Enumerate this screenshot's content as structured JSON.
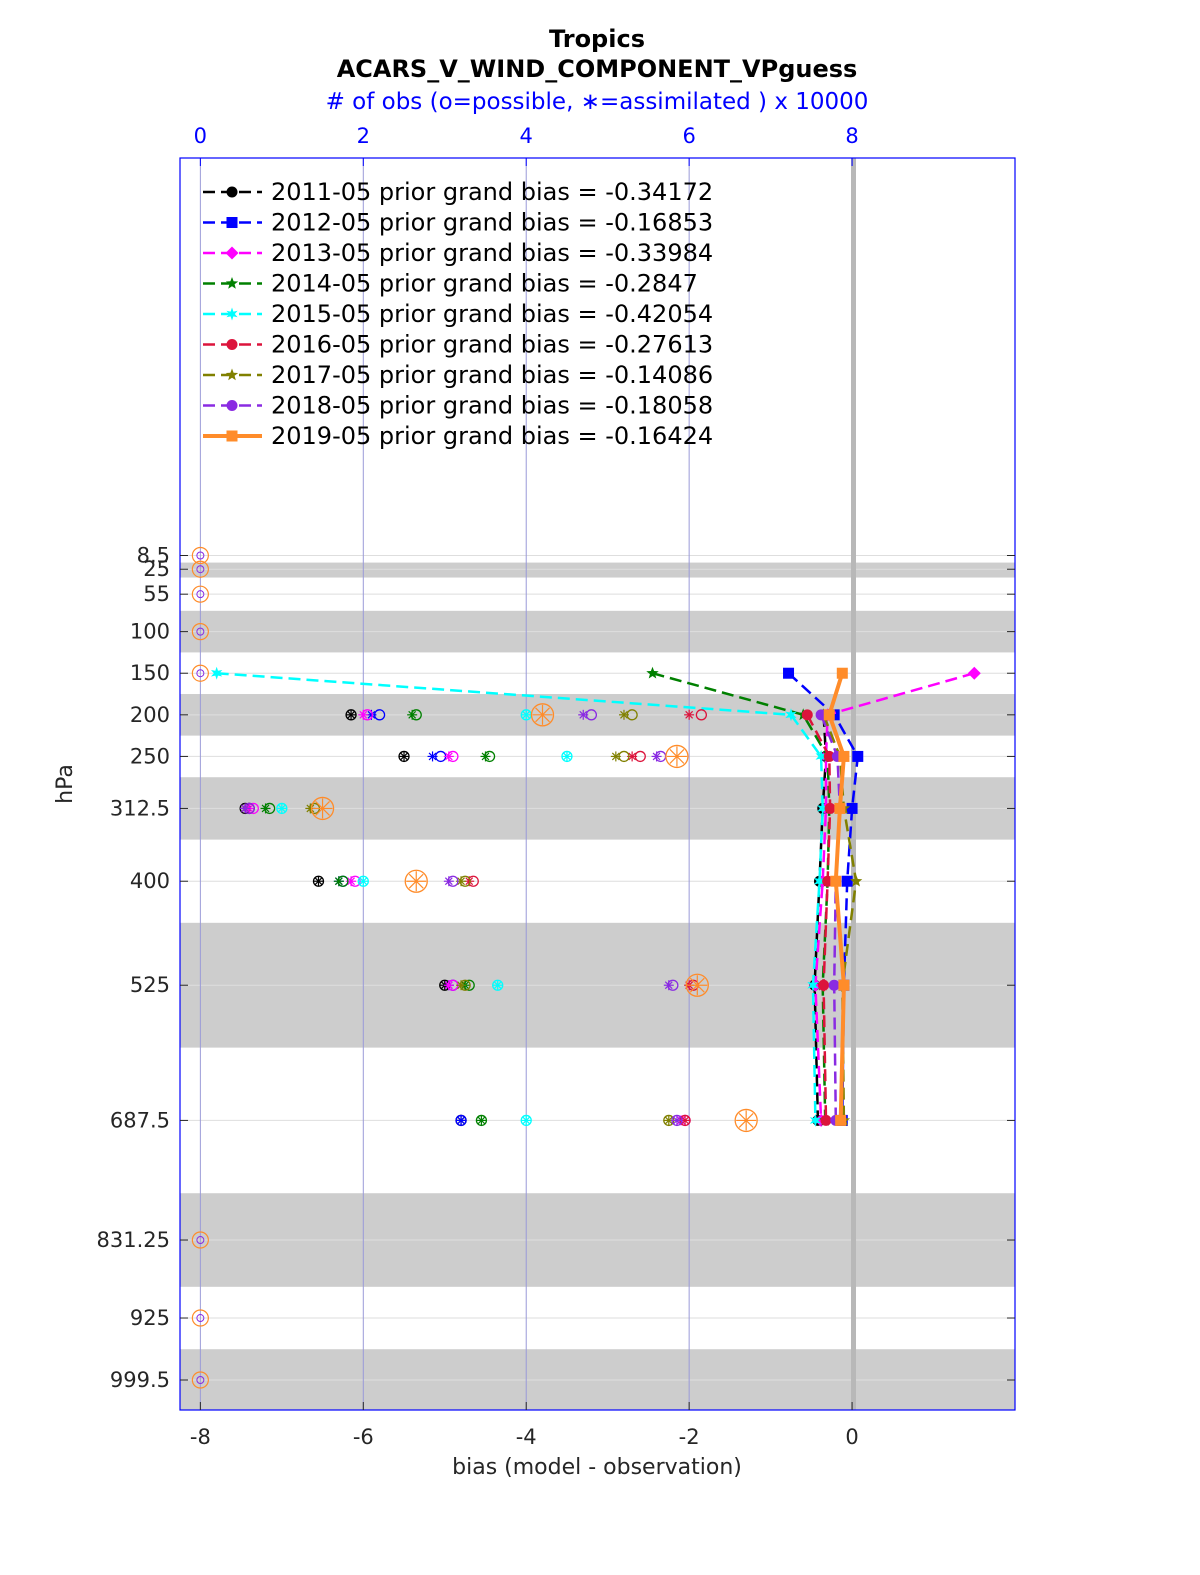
{
  "chart_data": {
    "type": "line",
    "title": "Tropics",
    "subtitle": "ACARS_V_WIND_COMPONENT_VPguess",
    "top_axis_label": "# of obs (o=possible, ∗=assimilated ) x 10000",
    "xlabel": "bias (model - observation)",
    "ylabel": "hPa",
    "xlim": [
      -8.25,
      2.0
    ],
    "top_xlim": [
      -0.25,
      10.0
    ],
    "x_ticks": [
      "-8",
      "-6",
      "-4",
      "-2",
      "0"
    ],
    "x_tick_values": [
      -8,
      -6,
      -4,
      -2,
      0
    ],
    "top_ticks": [
      "0",
      "2",
      "4",
      "6",
      "8"
    ],
    "top_tick_values": [
      0,
      2,
      4,
      6,
      8
    ],
    "y_tick_labels": [
      "8.5",
      "25",
      "55",
      "100",
      "150",
      "200",
      "250",
      "312.5",
      "400",
      "525",
      "687.5",
      "831.25",
      "925",
      "999.5"
    ],
    "levels": [
      8.5,
      25,
      55,
      100,
      150,
      200,
      250,
      312.5,
      400,
      525,
      687.5,
      831.25,
      925,
      999.5
    ],
    "layer_bands": [
      [
        17,
        35
      ],
      [
        75,
        125
      ],
      [
        175,
        225
      ],
      [
        275,
        350
      ],
      [
        450,
        600
      ],
      [
        775,
        887.5
      ],
      [
        962.5,
        1037
      ]
    ],
    "series": [
      {
        "name": "2011-05 prior grand bias = -0.34172",
        "color": "#000000",
        "marker": "circle",
        "dash": true,
        "levels": [
          200,
          250,
          312.5,
          400,
          525,
          687.5
        ],
        "bias": [
          -0.35,
          -0.32,
          -0.36,
          -0.4,
          -0.46,
          -0.42
        ],
        "poss": [
          1.85,
          2.5,
          0.55,
          1.45,
          3.0,
          3.2
        ],
        "used": [
          1.85,
          2.5,
          0.55,
          1.45,
          3.0,
          3.2
        ]
      },
      {
        "name": "2012-05 prior grand bias = -0.16853",
        "color": "#0000ff",
        "marker": "square",
        "dash": true,
        "levels": [
          150,
          200,
          250,
          312.5,
          400,
          525,
          687.5
        ],
        "bias": [
          -0.78,
          -0.22,
          0.07,
          0.0,
          -0.06,
          -0.1,
          -0.12
        ],
        "poss": [
          null,
          2.2,
          2.95,
          0.6,
          1.75,
          3.1,
          3.2
        ],
        "used": [
          null,
          2.1,
          2.85,
          0.55,
          1.7,
          3.05,
          3.2
        ]
      },
      {
        "name": "2013-05 prior grand bias = -0.33984",
        "color": "#ff00ff",
        "marker": "diamond",
        "dash": true,
        "levels": [
          150,
          200,
          250,
          312.5,
          400,
          525,
          687.5
        ],
        "bias": [
          1.5,
          -0.3,
          -0.32,
          -0.32,
          -0.36,
          -0.45,
          -0.38
        ],
        "poss": [
          null,
          2.05,
          3.1,
          0.65,
          1.9,
          3.1,
          5.95
        ],
        "used": [
          null,
          2.0,
          3.05,
          0.6,
          1.85,
          3.05,
          5.9
        ]
      },
      {
        "name": "2014-05 prior grand bias = -0.2847",
        "color": "#008000",
        "marker": "star",
        "dash": true,
        "levels": [
          150,
          200,
          250,
          312.5,
          400,
          525,
          687.5
        ],
        "bias": [
          -2.45,
          -0.6,
          -0.3,
          -0.28,
          -0.3,
          -0.36,
          -0.33
        ],
        "poss": [
          null,
          2.65,
          3.55,
          0.85,
          1.75,
          3.3,
          3.45
        ],
        "used": [
          null,
          2.6,
          3.5,
          0.8,
          1.7,
          3.25,
          3.45
        ]
      },
      {
        "name": "2015-05 prior grand bias = -0.42054",
        "color": "#00ffff",
        "marker": "hexagram",
        "dash": true,
        "levels": [
          150,
          200,
          250,
          312.5,
          400,
          525,
          687.5
        ],
        "bias": [
          -7.8,
          -0.75,
          -0.38,
          -0.36,
          -0.4,
          -0.48,
          -0.45
        ],
        "poss": [
          null,
          4.0,
          4.5,
          1.0,
          2.0,
          3.65,
          4.0
        ],
        "used": [
          null,
          4.0,
          4.5,
          1.0,
          2.0,
          3.65,
          4.0
        ]
      },
      {
        "name": "2016-05 prior grand bias = -0.27613",
        "color": "#dc143c",
        "marker": "circle",
        "dash": true,
        "levels": [
          200,
          250,
          312.5,
          400,
          525,
          687.5
        ],
        "bias": [
          -0.55,
          -0.28,
          -0.27,
          -0.3,
          -0.35,
          -0.32
        ],
        "poss": [
          6.15,
          5.4,
          0.6,
          3.35,
          6.05,
          5.95
        ],
        "used": [
          6.0,
          5.3,
          0.55,
          3.3,
          6.0,
          5.95
        ]
      },
      {
        "name": "2017-05 prior grand bias = -0.14086",
        "color": "#808000",
        "marker": "star",
        "dash": true,
        "levels": [
          200,
          250,
          312.5,
          400,
          525,
          687.5
        ],
        "bias": [
          -0.35,
          -0.15,
          -0.1,
          0.05,
          -0.12,
          -0.1
        ],
        "poss": [
          5.3,
          5.2,
          1.4,
          3.25,
          3.25,
          5.75
        ],
        "used": [
          5.2,
          5.1,
          1.35,
          3.2,
          3.2,
          5.75
        ]
      },
      {
        "name": "2018-05 prior grand bias = -0.18058",
        "color": "#8a2be2",
        "marker": "circle",
        "dash": true,
        "levels": [
          200,
          250,
          312.5,
          400,
          525,
          687.5
        ],
        "bias": [
          -0.38,
          -0.18,
          -0.15,
          -0.2,
          -0.22,
          -0.2
        ],
        "poss": [
          4.8,
          5.65,
          0.6,
          3.1,
          5.8,
          5.85
        ],
        "used": [
          4.7,
          5.6,
          0.55,
          3.05,
          5.75,
          5.85
        ]
      },
      {
        "name": "2019-05 prior grand bias = -0.16424",
        "color": "#ff8c2a",
        "marker": "square",
        "dash": false,
        "levels": [
          150,
          200,
          250,
          312.5,
          400,
          525,
          687.5
        ],
        "bias": [
          -0.12,
          -0.28,
          -0.1,
          -0.15,
          -0.2,
          -0.1,
          -0.14
        ],
        "poss": [
          null,
          4.2,
          5.85,
          1.5,
          2.65,
          6.1,
          6.7
        ],
        "used": [
          null,
          4.2,
          5.85,
          1.5,
          2.65,
          6.1,
          6.7
        ]
      }
    ]
  }
}
